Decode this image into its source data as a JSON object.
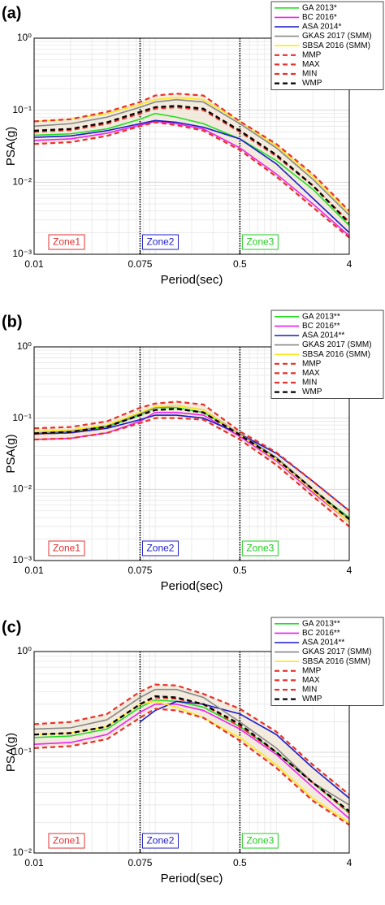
{
  "chart_data": [
    {
      "type": "line",
      "panel_label": "(a)",
      "xlabel": "Period(sec)",
      "ylabel": "PSA(g)",
      "log_x": true,
      "log_y": true,
      "grid": true,
      "legend": "upper right",
      "xlim": [
        0.01,
        4
      ],
      "xticks": [
        0.01,
        0.075,
        0.5,
        4
      ],
      "ylim": [
        0.001,
        1
      ],
      "yticks": [
        {
          "value": 0.001,
          "label": "10⁻³"
        },
        {
          "value": 0.01,
          "label": "10⁻²"
        },
        {
          "value": 0.1,
          "label": "10⁻¹"
        },
        {
          "value": 1,
          "label": "10⁰"
        }
      ],
      "zone_boundaries": [
        0.075,
        0.5
      ],
      "zones": [
        {
          "label": "Zone1",
          "color": "#e03030"
        },
        {
          "label": "Zone2",
          "color": "#2020c8"
        },
        {
          "label": "Zone3",
          "color": "#22cc22"
        }
      ],
      "x": [
        0.01,
        0.02,
        0.04,
        0.075,
        0.1,
        0.15,
        0.25,
        0.5,
        1,
        2,
        4
      ],
      "series": [
        {
          "name": "GA 2013*",
          "color": "#22dd22",
          "dashed": false,
          "values": [
            0.045,
            0.047,
            0.055,
            0.075,
            0.09,
            0.08,
            0.065,
            0.04,
            0.02,
            0.008,
            0.0025
          ]
        },
        {
          "name": "BC 2016*",
          "color": "#ee22ee",
          "dashed": false,
          "values": [
            0.038,
            0.04,
            0.048,
            0.062,
            0.07,
            0.065,
            0.055,
            0.03,
            0.013,
            0.005,
            0.0018
          ]
        },
        {
          "name": "ASA 2014*",
          "color": "#1a1acc",
          "dashed": false,
          "values": [
            0.042,
            0.044,
            0.052,
            0.065,
            0.072,
            0.068,
            0.058,
            0.04,
            0.018,
            0.006,
            0.002
          ]
        },
        {
          "name": "GKAS 2017 (SMM)",
          "color": "#888888",
          "dashed": false,
          "values": [
            0.06,
            0.065,
            0.08,
            0.11,
            0.13,
            0.14,
            0.13,
            0.065,
            0.03,
            0.011,
            0.0035
          ]
        },
        {
          "name": "SBSA 2016 (SMM)",
          "color": "#ffe81a",
          "dashed": false,
          "values": [
            0.07,
            0.075,
            0.09,
            0.12,
            0.14,
            0.15,
            0.14,
            0.07,
            0.032,
            0.012,
            0.0038
          ]
        },
        {
          "name": "MMP",
          "color": "#e8312a",
          "dashed": true,
          "values": [
            0.05,
            0.053,
            0.065,
            0.09,
            0.105,
            0.11,
            0.1,
            0.05,
            0.023,
            0.009,
            0.0028
          ]
        },
        {
          "name": "MAX",
          "color": "#e8312a",
          "dashed": true,
          "values": [
            0.07,
            0.075,
            0.095,
            0.13,
            0.16,
            0.17,
            0.16,
            0.07,
            0.034,
            0.013,
            0.004
          ]
        },
        {
          "name": "MIN",
          "color": "#e8312a",
          "dashed": true,
          "values": [
            0.034,
            0.036,
            0.044,
            0.06,
            0.068,
            0.062,
            0.052,
            0.028,
            0.012,
            0.0045,
            0.0017
          ]
        },
        {
          "name": "WMP",
          "color": "#000000",
          "dashed": true,
          "values": [
            0.052,
            0.055,
            0.068,
            0.095,
            0.11,
            0.115,
            0.105,
            0.052,
            0.024,
            0.009,
            0.0027
          ]
        }
      ]
    },
    {
      "type": "line",
      "panel_label": "(b)",
      "xlabel": "Period(sec)",
      "ylabel": "PSA(g)",
      "log_x": true,
      "log_y": true,
      "grid": true,
      "legend": "upper right",
      "xlim": [
        0.01,
        4
      ],
      "xticks": [
        0.01,
        0.075,
        0.5,
        4
      ],
      "ylim": [
        0.001,
        1
      ],
      "yticks": [
        {
          "value": 0.001,
          "label": "10⁻³"
        },
        {
          "value": 0.01,
          "label": "10⁻²"
        },
        {
          "value": 0.1,
          "label": "10⁻¹"
        },
        {
          "value": 1,
          "label": "10⁰"
        }
      ],
      "zone_boundaries": [
        0.075,
        0.5
      ],
      "zones": [
        {
          "label": "Zone1",
          "color": "#e03030"
        },
        {
          "label": "Zone2",
          "color": "#2020c8"
        },
        {
          "label": "Zone3",
          "color": "#22cc22"
        }
      ],
      "x": [
        0.01,
        0.02,
        0.04,
        0.075,
        0.1,
        0.15,
        0.25,
        0.5,
        1,
        2,
        4
      ],
      "series": [
        {
          "name": "GA 2013**",
          "color": "#22dd22",
          "dashed": false,
          "values": [
            0.06,
            0.062,
            0.075,
            0.11,
            0.14,
            0.14,
            0.12,
            0.06,
            0.028,
            0.01,
            0.004
          ]
        },
        {
          "name": "BC 2016**",
          "color": "#ee22ee",
          "dashed": false,
          "values": [
            0.05,
            0.052,
            0.062,
            0.09,
            0.12,
            0.12,
            0.11,
            0.055,
            0.025,
            0.009,
            0.0035
          ]
        },
        {
          "name": "ASA 2014**",
          "color": "#1a1acc",
          "dashed": false,
          "values": [
            0.06,
            0.062,
            0.072,
            0.095,
            0.11,
            0.11,
            0.1,
            0.06,
            0.032,
            0.013,
            0.005
          ]
        },
        {
          "name": "GKAS 2017 (SMM)",
          "color": "#888888",
          "dashed": false,
          "values": [
            0.062,
            0.065,
            0.078,
            0.115,
            0.14,
            0.15,
            0.13,
            0.06,
            0.028,
            0.01,
            0.0038
          ]
        },
        {
          "name": "SBSA 2016 (SMM)",
          "color": "#ffe81a",
          "dashed": false,
          "values": [
            0.065,
            0.068,
            0.08,
            0.12,
            0.145,
            0.15,
            0.13,
            0.058,
            0.026,
            0.0095,
            0.0035
          ]
        },
        {
          "name": "MMP",
          "color": "#e8312a",
          "dashed": true,
          "values": [
            0.06,
            0.063,
            0.075,
            0.11,
            0.13,
            0.135,
            0.12,
            0.058,
            0.027,
            0.01,
            0.0038
          ]
        },
        {
          "name": "MAX",
          "color": "#e8312a",
          "dashed": true,
          "values": [
            0.072,
            0.075,
            0.09,
            0.14,
            0.16,
            0.17,
            0.155,
            0.065,
            0.033,
            0.013,
            0.005
          ]
        },
        {
          "name": "MIN",
          "color": "#e8312a",
          "dashed": true,
          "values": [
            0.05,
            0.052,
            0.062,
            0.085,
            0.1,
            0.1,
            0.095,
            0.05,
            0.022,
            0.008,
            0.003
          ]
        },
        {
          "name": "WMP",
          "color": "#000000",
          "dashed": true,
          "values": [
            0.061,
            0.064,
            0.076,
            0.11,
            0.13,
            0.135,
            0.12,
            0.058,
            0.027,
            0.01,
            0.0038
          ]
        }
      ]
    },
    {
      "type": "line",
      "panel_label": "(c)",
      "xlabel": "Period(sec)",
      "ylabel": "PSA(g)",
      "log_x": true,
      "log_y": true,
      "grid": true,
      "legend": "upper right",
      "xlim": [
        0.01,
        4
      ],
      "xticks": [
        0.01,
        0.075,
        0.5,
        4
      ],
      "ylim": [
        0.01,
        1
      ],
      "yticks": [
        {
          "value": 0.01,
          "label": "10⁻²"
        },
        {
          "value": 0.1,
          "label": "10⁻¹"
        },
        {
          "value": 1,
          "label": "10⁰"
        }
      ],
      "zone_boundaries": [
        0.075,
        0.5
      ],
      "zones": [
        {
          "label": "Zone1",
          "color": "#e03030"
        },
        {
          "label": "Zone2",
          "color": "#2020c8"
        },
        {
          "label": "Zone3",
          "color": "#22cc22"
        }
      ],
      "x": [
        0.01,
        0.02,
        0.04,
        0.075,
        0.1,
        0.15,
        0.25,
        0.5,
        1,
        2,
        4
      ],
      "series": [
        {
          "name": "GA 2013**",
          "color": "#22dd22",
          "dashed": false,
          "values": [
            0.14,
            0.145,
            0.17,
            0.28,
            0.33,
            0.32,
            0.28,
            0.18,
            0.1,
            0.05,
            0.025
          ]
        },
        {
          "name": "BC 2016**",
          "color": "#ee22ee",
          "dashed": false,
          "values": [
            0.12,
            0.125,
            0.15,
            0.25,
            0.3,
            0.3,
            0.26,
            0.17,
            0.095,
            0.045,
            0.022
          ]
        },
        {
          "name": "ASA 2014**",
          "color": "#1a1acc",
          "dashed": false,
          "values": [
            null,
            null,
            null,
            0.2,
            0.26,
            0.32,
            0.3,
            0.24,
            0.15,
            0.07,
            0.035
          ]
        },
        {
          "name": "GKAS 2017 (SMM)",
          "color": "#888888",
          "dashed": false,
          "values": [
            0.17,
            0.175,
            0.21,
            0.35,
            0.42,
            0.42,
            0.35,
            0.2,
            0.11,
            0.05,
            0.03
          ]
        },
        {
          "name": "SBSA 2016 (SMM)",
          "color": "#ffe81a",
          "dashed": false,
          "values": [
            0.15,
            0.155,
            0.18,
            0.3,
            0.32,
            0.28,
            0.22,
            0.14,
            0.075,
            0.035,
            0.02
          ]
        },
        {
          "name": "MMP",
          "color": "#e8312a",
          "dashed": true,
          "values": [
            0.15,
            0.155,
            0.18,
            0.3,
            0.35,
            0.34,
            0.3,
            0.18,
            0.1,
            0.05,
            0.025
          ]
        },
        {
          "name": "MAX",
          "color": "#e8312a",
          "dashed": true,
          "values": [
            0.19,
            0.2,
            0.24,
            0.4,
            0.47,
            0.46,
            0.38,
            0.27,
            0.16,
            0.075,
            0.038
          ]
        },
        {
          "name": "MIN",
          "color": "#e8312a",
          "dashed": true,
          "values": [
            0.11,
            0.115,
            0.135,
            0.22,
            0.27,
            0.26,
            0.22,
            0.13,
            0.07,
            0.033,
            0.019
          ]
        },
        {
          "name": "WMP",
          "color": "#000000",
          "dashed": true,
          "values": [
            0.15,
            0.155,
            0.18,
            0.3,
            0.36,
            0.35,
            0.3,
            0.19,
            0.1,
            0.05,
            0.026
          ]
        }
      ]
    }
  ]
}
